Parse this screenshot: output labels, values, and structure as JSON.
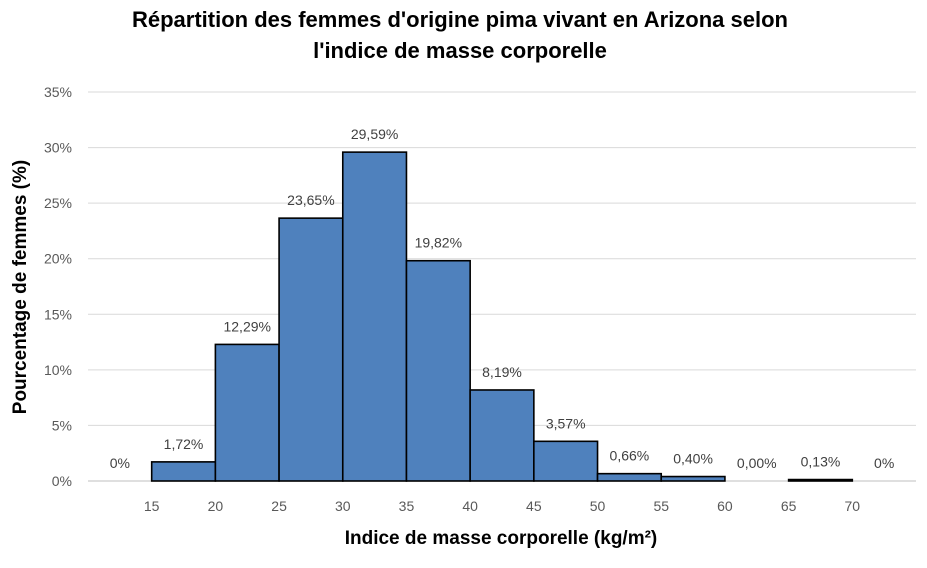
{
  "chart_data": {
    "type": "bar",
    "title_lines": [
      "Répartition des femmes d'origine pima vivant en Arizona selon",
      "l'indice de masse corporelle"
    ],
    "xlabel": "Indice de masse corporelle (kg/m²)",
    "ylabel": "Pourcentage de femmes (%)",
    "x_ticks": [
      "15",
      "20",
      "25",
      "30",
      "35",
      "40",
      "45",
      "50",
      "55",
      "60",
      "65",
      "70"
    ],
    "y_ticks": [
      "0%",
      "5%",
      "10%",
      "15%",
      "20%",
      "25%",
      "30%",
      "35%"
    ],
    "ylim": [
      0,
      35
    ],
    "grid": true,
    "bar_color": "#4F81BD",
    "bins": [
      {
        "from": 10,
        "to": 15,
        "value": 0,
        "label": "0%"
      },
      {
        "from": 15,
        "to": 20,
        "value": 1.72,
        "label": "1,72%"
      },
      {
        "from": 20,
        "to": 25,
        "value": 12.29,
        "label": "12,29%"
      },
      {
        "from": 25,
        "to": 30,
        "value": 23.65,
        "label": "23,65%"
      },
      {
        "from": 30,
        "to": 35,
        "value": 29.59,
        "label": "29,59%"
      },
      {
        "from": 35,
        "to": 40,
        "value": 19.82,
        "label": "19,82%"
      },
      {
        "from": 40,
        "to": 45,
        "value": 8.19,
        "label": "8,19%"
      },
      {
        "from": 45,
        "to": 50,
        "value": 3.57,
        "label": "3,57%"
      },
      {
        "from": 50,
        "to": 55,
        "value": 0.66,
        "label": "0,66%"
      },
      {
        "from": 55,
        "to": 60,
        "value": 0.4,
        "label": "0,40%"
      },
      {
        "from": 60,
        "to": 65,
        "value": 0.0,
        "label": "0,00%"
      },
      {
        "from": 65,
        "to": 70,
        "value": 0.13,
        "label": "0,13%"
      },
      {
        "from": 70,
        "to": 75,
        "value": 0,
        "label": "0%"
      }
    ]
  }
}
